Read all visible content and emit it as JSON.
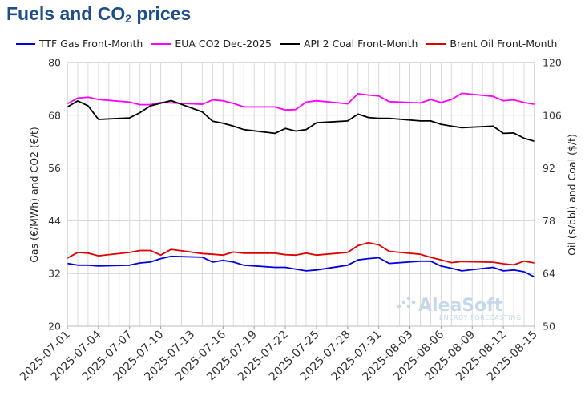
{
  "header": {
    "title_main": "Fuels and CO",
    "title_sub": "2",
    "title_end": " prices"
  },
  "watermark": {
    "brand": "AleaSoft",
    "tagline": "ENERGY FORECASTING"
  },
  "chart_data": {
    "type": "line",
    "title": "Fuels and CO2 prices",
    "ylabel": "Gas (€/MWh) and CO2 (€/t)",
    "y2label": "Oil ($/bbl) and Coal ($/t)",
    "ylim": [
      20,
      80
    ],
    "y2lim": [
      50,
      120
    ],
    "yticks": [
      "20",
      "32",
      "44",
      "56",
      "68",
      "80"
    ],
    "y2ticks": [
      "50",
      "64",
      "78",
      "92",
      "106",
      "120"
    ],
    "xlim": [
      "2025-07-01",
      "2025-08-15"
    ],
    "xticks": [
      "2025-07-01",
      "2025-07-04",
      "2025-07-07",
      "2025-07-10",
      "2025-07-13",
      "2025-07-16",
      "2025-07-19",
      "2025-07-22",
      "2025-07-25",
      "2025-07-28",
      "2025-07-31",
      "2025-08-03",
      "2025-08-06",
      "2025-08-09",
      "2025-08-12",
      "2025-08-15"
    ],
    "grid": true,
    "legend_position": "top",
    "series": [
      {
        "name": "TTF Gas Front-Month",
        "axis": "left",
        "color": "#0000e0",
        "points": [
          [
            "2025-07-01",
            34.3
          ],
          [
            "2025-07-02",
            33.9
          ],
          [
            "2025-07-03",
            33.9
          ],
          [
            "2025-07-04",
            33.7
          ],
          [
            "2025-07-07",
            33.9
          ],
          [
            "2025-07-08",
            34.4
          ],
          [
            "2025-07-09",
            34.6
          ],
          [
            "2025-07-10",
            35.4
          ],
          [
            "2025-07-11",
            35.9
          ],
          [
            "2025-07-14",
            35.7
          ],
          [
            "2025-07-15",
            34.6
          ],
          [
            "2025-07-16",
            35.0
          ],
          [
            "2025-07-17",
            34.6
          ],
          [
            "2025-07-18",
            33.9
          ],
          [
            "2025-07-21",
            33.4
          ],
          [
            "2025-07-22",
            33.4
          ],
          [
            "2025-07-23",
            33.0
          ],
          [
            "2025-07-24",
            32.6
          ],
          [
            "2025-07-25",
            32.8
          ],
          [
            "2025-07-28",
            33.9
          ],
          [
            "2025-07-29",
            35.1
          ],
          [
            "2025-07-30",
            35.4
          ],
          [
            "2025-07-31",
            35.6
          ],
          [
            "2025-08-01",
            34.3
          ],
          [
            "2025-08-04",
            34.8
          ],
          [
            "2025-08-05",
            34.8
          ],
          [
            "2025-08-06",
            33.7
          ],
          [
            "2025-08-07",
            33.2
          ],
          [
            "2025-08-08",
            32.6
          ],
          [
            "2025-08-11",
            33.4
          ],
          [
            "2025-08-12",
            32.6
          ],
          [
            "2025-08-13",
            32.8
          ],
          [
            "2025-08-14",
            32.4
          ],
          [
            "2025-08-15",
            31.2
          ]
        ]
      },
      {
        "name": "EUA CO2 Dec-2025",
        "axis": "left",
        "color": "#ff00ff",
        "points": [
          [
            "2025-07-01",
            70.6
          ],
          [
            "2025-07-02",
            71.9
          ],
          [
            "2025-07-03",
            72.1
          ],
          [
            "2025-07-04",
            71.6
          ],
          [
            "2025-07-07",
            71.0
          ],
          [
            "2025-07-08",
            70.4
          ],
          [
            "2025-07-09",
            70.4
          ],
          [
            "2025-07-10",
            70.9
          ],
          [
            "2025-07-11",
            70.8
          ],
          [
            "2025-07-14",
            70.5
          ],
          [
            "2025-07-15",
            71.5
          ],
          [
            "2025-07-16",
            71.3
          ],
          [
            "2025-07-17",
            70.7
          ],
          [
            "2025-07-18",
            69.9
          ],
          [
            "2025-07-21",
            69.9
          ],
          [
            "2025-07-22",
            69.2
          ],
          [
            "2025-07-23",
            69.3
          ],
          [
            "2025-07-24",
            71.0
          ],
          [
            "2025-07-25",
            71.3
          ],
          [
            "2025-07-28",
            70.6
          ],
          [
            "2025-07-29",
            72.9
          ],
          [
            "2025-07-30",
            72.6
          ],
          [
            "2025-07-31",
            72.4
          ],
          [
            "2025-08-01",
            71.1
          ],
          [
            "2025-08-04",
            70.8
          ],
          [
            "2025-08-05",
            71.6
          ],
          [
            "2025-08-06",
            70.9
          ],
          [
            "2025-08-07",
            71.6
          ],
          [
            "2025-08-08",
            73.0
          ],
          [
            "2025-08-11",
            72.3
          ],
          [
            "2025-08-12",
            71.3
          ],
          [
            "2025-08-13",
            71.5
          ],
          [
            "2025-08-14",
            70.9
          ],
          [
            "2025-08-15",
            70.5
          ]
        ]
      },
      {
        "name": "API 2 Coal Front-Month",
        "axis": "right",
        "color": "#000000",
        "points": [
          [
            "2025-07-01",
            108.2
          ],
          [
            "2025-07-02",
            109.8
          ],
          [
            "2025-07-03",
            108.5
          ],
          [
            "2025-07-04",
            104.9
          ],
          [
            "2025-07-07",
            105.3
          ],
          [
            "2025-07-08",
            106.7
          ],
          [
            "2025-07-09",
            108.5
          ],
          [
            "2025-07-10",
            109.2
          ],
          [
            "2025-07-11",
            109.9
          ],
          [
            "2025-07-14",
            106.9
          ],
          [
            "2025-07-15",
            104.4
          ],
          [
            "2025-07-16",
            103.9
          ],
          [
            "2025-07-17",
            103.1
          ],
          [
            "2025-07-18",
            102.2
          ],
          [
            "2025-07-21",
            101.2
          ],
          [
            "2025-07-22",
            102.5
          ],
          [
            "2025-07-23",
            101.8
          ],
          [
            "2025-07-24",
            102.2
          ],
          [
            "2025-07-25",
            104.0
          ],
          [
            "2025-07-28",
            104.5
          ],
          [
            "2025-07-29",
            106.3
          ],
          [
            "2025-07-30",
            105.4
          ],
          [
            "2025-07-31",
            105.2
          ],
          [
            "2025-08-01",
            105.2
          ],
          [
            "2025-08-04",
            104.5
          ],
          [
            "2025-08-05",
            104.5
          ],
          [
            "2025-08-06",
            103.6
          ],
          [
            "2025-08-07",
            103.1
          ],
          [
            "2025-08-08",
            102.7
          ],
          [
            "2025-08-11",
            103.1
          ],
          [
            "2025-08-12",
            101.2
          ],
          [
            "2025-08-13",
            101.3
          ],
          [
            "2025-08-14",
            99.9
          ],
          [
            "2025-08-15",
            99.1
          ]
        ]
      },
      {
        "name": "Brent Oil Front-Month",
        "axis": "right",
        "color": "#e00000",
        "points": [
          [
            "2025-07-01",
            68.1
          ],
          [
            "2025-07-02",
            69.6
          ],
          [
            "2025-07-03",
            69.4
          ],
          [
            "2025-07-04",
            68.7
          ],
          [
            "2025-07-07",
            69.6
          ],
          [
            "2025-07-08",
            70.1
          ],
          [
            "2025-07-09",
            70.1
          ],
          [
            "2025-07-10",
            68.9
          ],
          [
            "2025-07-11",
            70.4
          ],
          [
            "2025-07-14",
            69.3
          ],
          [
            "2025-07-15",
            69.1
          ],
          [
            "2025-07-16",
            68.9
          ],
          [
            "2025-07-17",
            69.7
          ],
          [
            "2025-07-18",
            69.4
          ],
          [
            "2025-07-21",
            69.4
          ],
          [
            "2025-07-22",
            69.0
          ],
          [
            "2025-07-23",
            68.9
          ],
          [
            "2025-07-24",
            69.4
          ],
          [
            "2025-07-25",
            68.9
          ],
          [
            "2025-07-28",
            69.6
          ],
          [
            "2025-07-29",
            71.4
          ],
          [
            "2025-07-30",
            72.2
          ],
          [
            "2025-07-31",
            71.6
          ],
          [
            "2025-08-01",
            69.9
          ],
          [
            "2025-08-04",
            69.1
          ],
          [
            "2025-08-05",
            68.3
          ],
          [
            "2025-08-06",
            67.6
          ],
          [
            "2025-08-07",
            66.9
          ],
          [
            "2025-08-08",
            67.2
          ],
          [
            "2025-08-11",
            67.0
          ],
          [
            "2025-08-12",
            66.6
          ],
          [
            "2025-08-13",
            66.3
          ],
          [
            "2025-08-14",
            67.3
          ],
          [
            "2025-08-15",
            66.8
          ]
        ]
      }
    ]
  }
}
